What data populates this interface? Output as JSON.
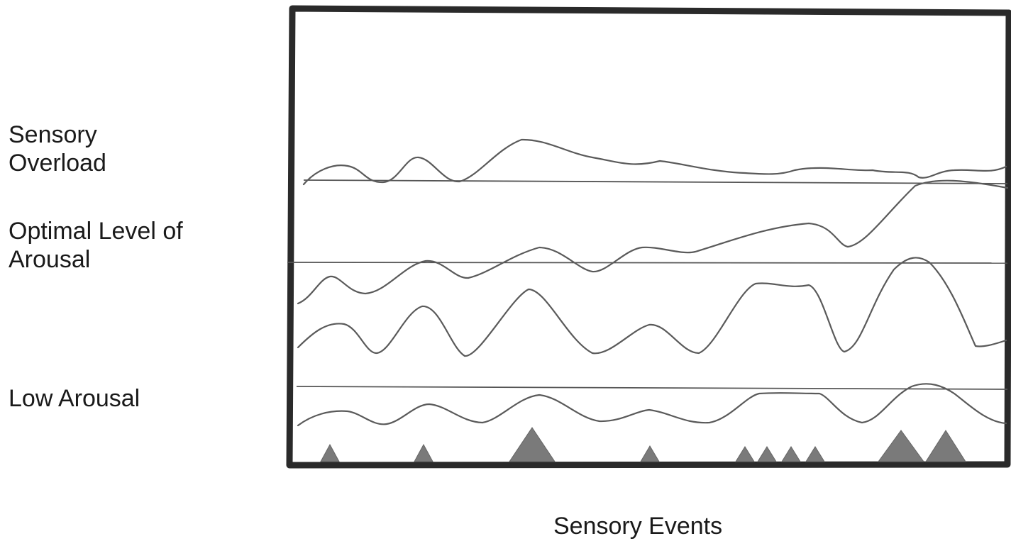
{
  "labels": {
    "sensory_overload": "Sensory\nOverload",
    "optimal_arousal": "Optimal Level of\nArousal",
    "low_arousal": "Low Arousal",
    "sensory_events": "Sensory Events"
  },
  "colors": {
    "frame": "#2a2a2a",
    "threshold": "#555555",
    "curve": "#5a5a5a",
    "event_marker": "#7a7a7a",
    "text": "#1a1a1a"
  },
  "event_marker_sizes": [
    "small",
    "small",
    "large",
    "small",
    "small",
    "small",
    "small",
    "small",
    "large",
    "large"
  ]
}
